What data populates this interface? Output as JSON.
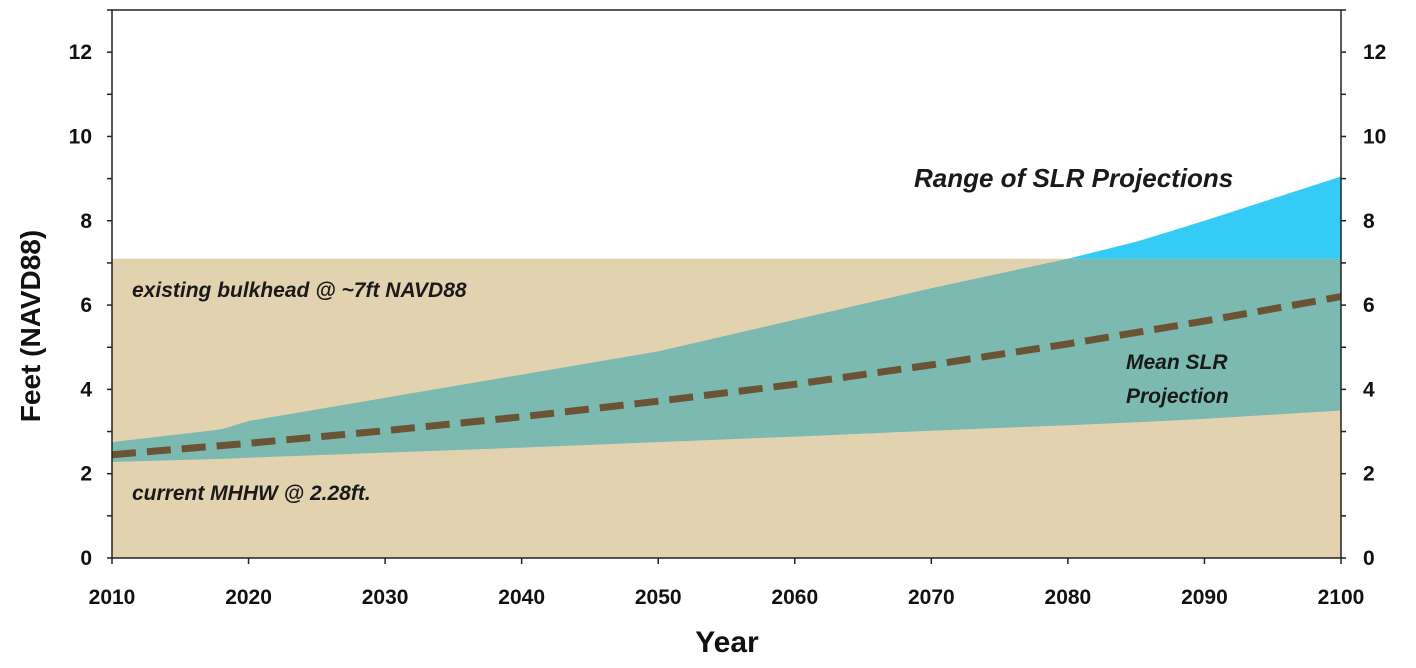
{
  "chart_data": {
    "type": "area",
    "xlabel": "Year",
    "ylabel": "Feet (NAVD88)",
    "xlim": [
      2010,
      2100
    ],
    "ylim": [
      0,
      13
    ],
    "x_ticks": [
      2010,
      2020,
      2030,
      2040,
      2050,
      2060,
      2070,
      2080,
      2090,
      2100
    ],
    "y_ticks": [
      0,
      2,
      4,
      6,
      8,
      10,
      12
    ],
    "secondary_y_axis": true,
    "grid": false,
    "bulkhead": {
      "value": 7.1,
      "color": "#e2d2b0"
    },
    "range": {
      "color_below_bulkhead": "#7cb9b0",
      "color_above_bulkhead": "#35cbf7",
      "x": [
        2010,
        2018,
        2020,
        2030,
        2040,
        2050,
        2060,
        2070,
        2080,
        2085,
        2090,
        2100
      ],
      "upper": [
        2.75,
        3.05,
        3.25,
        3.8,
        4.35,
        4.9,
        5.65,
        6.4,
        7.1,
        7.5,
        8.0,
        9.05
      ],
      "lower": [
        2.28,
        2.35,
        2.38,
        2.5,
        2.62,
        2.75,
        2.88,
        3.02,
        3.15,
        3.22,
        3.3,
        3.5
      ]
    },
    "mean": {
      "color": "#6b5435",
      "style": "dashed",
      "x": [
        2010,
        2020,
        2030,
        2040,
        2050,
        2060,
        2070,
        2080,
        2090,
        2100
      ],
      "values": [
        2.45,
        2.72,
        3.02,
        3.35,
        3.72,
        4.12,
        4.58,
        5.08,
        5.62,
        6.2
      ]
    },
    "annotations": {
      "range": "Range of SLR Projections",
      "bulkhead": "existing bulkhead @ ~7ft NAVD88",
      "mean_line1": "Mean SLR",
      "mean_line2": "Projection",
      "mhhw": "current MHHW @ 2.28ft."
    }
  }
}
